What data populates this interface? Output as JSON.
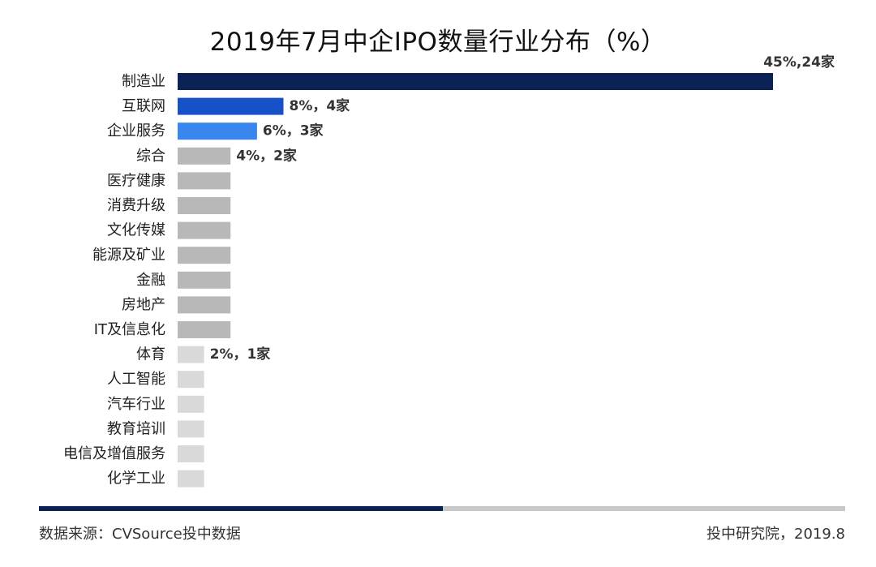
{
  "chart_data": {
    "type": "bar",
    "orientation": "horizontal",
    "title": "2019年7月中企IPO数量行业分布（%）",
    "categories": [
      "制造业",
      "互联网",
      "企业服务",
      "综合",
      "医疗健康",
      "消费升级",
      "文化传媒",
      "能源及矿业",
      "金融",
      "房地产",
      "IT及信息化",
      "体育",
      "人工智能",
      "汽车行业",
      "教育培训",
      "电信及增值服务",
      "化学工业"
    ],
    "values": [
      45,
      8,
      6,
      4,
      4,
      4,
      4,
      4,
      4,
      4,
      4,
      2,
      2,
      2,
      2,
      2,
      2
    ],
    "value_labels": [
      "45%,24家",
      "8%，4家",
      "6%，3家",
      "4%，2家",
      "",
      "",
      "",
      "",
      "",
      "",
      "",
      "2%，1家",
      "",
      "",
      "",
      "",
      ""
    ],
    "bar_colors": [
      "#0b2256",
      "#1651c8",
      "#3a86ef",
      "#b8b8b8",
      "#b8b8b8",
      "#b8b8b8",
      "#b8b8b8",
      "#b8b8b8",
      "#b8b8b8",
      "#b8b8b8",
      "#b8b8b8",
      "#d9d9d9",
      "#d9d9d9",
      "#d9d9d9",
      "#d9d9d9",
      "#d9d9d9",
      "#d9d9d9"
    ],
    "xlim": [
      0,
      45
    ],
    "grid": false,
    "legend": "none"
  },
  "footer": {
    "source": "数据来源：CVSource投中数据",
    "credit": "投中研究院，2019.8"
  }
}
